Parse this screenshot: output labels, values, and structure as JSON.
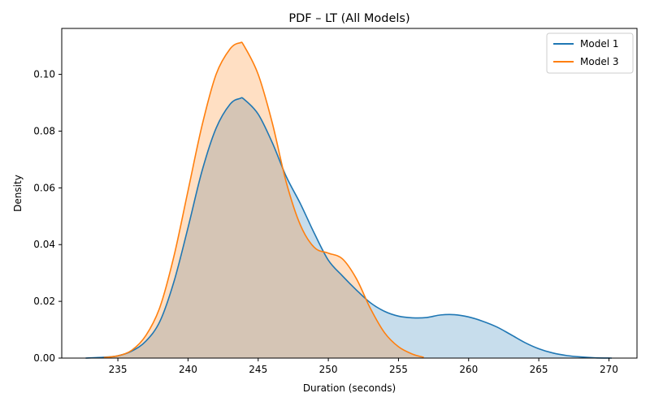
{
  "chart_data": {
    "type": "area",
    "title": "PDF – LT (All Models)",
    "xlabel": "Duration (seconds)",
    "ylabel": "Density",
    "xlim": [
      231,
      272
    ],
    "ylim": [
      0,
      0.1162
    ],
    "xticks": [
      235,
      240,
      245,
      250,
      255,
      260,
      265,
      270
    ],
    "yticks": [
      0.0,
      0.02,
      0.04,
      0.06,
      0.08,
      0.1
    ],
    "ytick_labels": [
      "0.00",
      "0.02",
      "0.04",
      "0.06",
      "0.08",
      "0.10"
    ],
    "grid": false,
    "legend_position": "top-right",
    "series": [
      {
        "name": "Model 1",
        "color": "#1f77b4",
        "fill_color": "#1f77b4",
        "fill_opacity": 0.25,
        "x": [
          232.7,
          234,
          235,
          236,
          237,
          238,
          239,
          240,
          241,
          242,
          243,
          243.7,
          244,
          245,
          246,
          247,
          248,
          249,
          250,
          251,
          252,
          253,
          254,
          255,
          256,
          257,
          258,
          259,
          260,
          261,
          262,
          263,
          264,
          265,
          266,
          267,
          268,
          269,
          270.2
        ],
        "y": [
          0.0,
          0.0003,
          0.0008,
          0.0025,
          0.006,
          0.013,
          0.027,
          0.046,
          0.066,
          0.081,
          0.0895,
          0.0915,
          0.0912,
          0.086,
          0.076,
          0.064,
          0.0545,
          0.044,
          0.0345,
          0.029,
          0.024,
          0.0195,
          0.0165,
          0.0148,
          0.0142,
          0.0143,
          0.0152,
          0.0153,
          0.0145,
          0.013,
          0.011,
          0.0083,
          0.0055,
          0.0033,
          0.0018,
          0.0009,
          0.0004,
          0.0001,
          0.0
        ]
      },
      {
        "name": "Model 3",
        "color": "#ff7f0e",
        "fill_color": "#ff7f0e",
        "fill_opacity": 0.25,
        "x": [
          234,
          235,
          236,
          237,
          238,
          239,
          240,
          241,
          242,
          243,
          243.7,
          244,
          245,
          246,
          247,
          248,
          249,
          250,
          251,
          252,
          253,
          254,
          255,
          256,
          256.8
        ],
        "y": [
          0.0002,
          0.0008,
          0.0028,
          0.008,
          0.018,
          0.036,
          0.059,
          0.082,
          0.1,
          0.109,
          0.1111,
          0.11,
          0.1,
          0.083,
          0.062,
          0.047,
          0.039,
          0.037,
          0.035,
          0.028,
          0.0175,
          0.009,
          0.004,
          0.0014,
          0.0003
        ]
      }
    ]
  }
}
